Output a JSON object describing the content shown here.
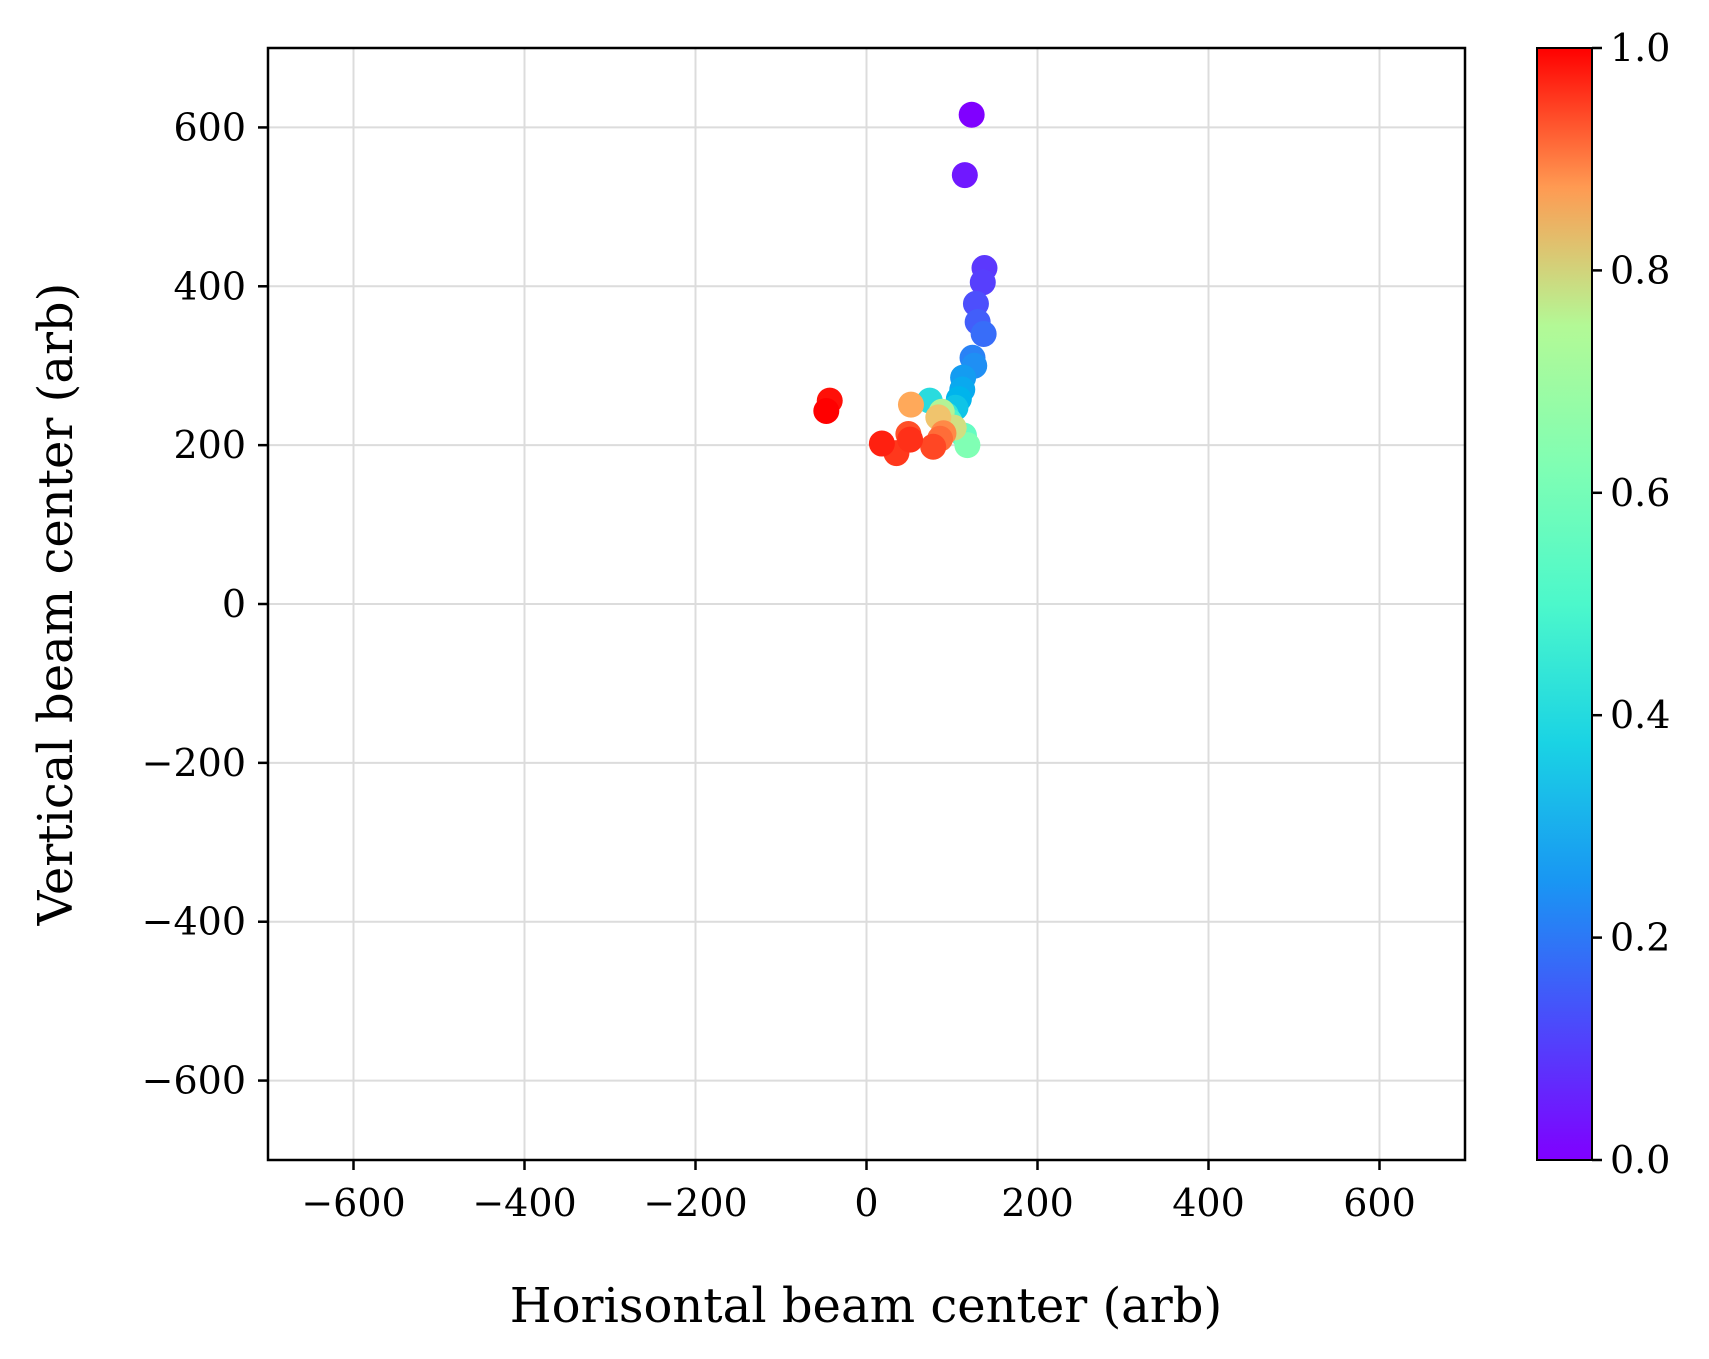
{
  "chart_data": {
    "type": "scatter",
    "title": "",
    "xlabel": "Horisontal beam center (arb)",
    "ylabel": "Vertical beam center (arb)",
    "xlim": [
      -700,
      700
    ],
    "ylim": [
      -700,
      700
    ],
    "xticks": [
      -600,
      -400,
      -200,
      0,
      200,
      400,
      600
    ],
    "yticks": [
      -600,
      -400,
      -200,
      0,
      200,
      400,
      600
    ],
    "xtick_labels": [
      "−600",
      "−400",
      "−200",
      "0",
      "200",
      "400",
      "600"
    ],
    "ytick_labels": [
      "−600",
      "−400",
      "−200",
      "0",
      "200",
      "400",
      "600"
    ],
    "grid": true,
    "colormap": "rainbow",
    "colorbar": {
      "range": [
        0.0,
        1.0
      ],
      "ticks": [
        0.0,
        0.2,
        0.4,
        0.6,
        0.8,
        1.0
      ],
      "tick_labels": [
        "0.0",
        "0.2",
        "0.4",
        "0.6",
        "0.8",
        "1.0"
      ]
    },
    "points": [
      {
        "x": 123,
        "y": 616,
        "c": 0.0
      },
      {
        "x": 115,
        "y": 540,
        "c": 0.03
      },
      {
        "x": 138,
        "y": 423,
        "c": 0.07
      },
      {
        "x": 136,
        "y": 405,
        "c": 0.08
      },
      {
        "x": 128,
        "y": 378,
        "c": 0.1
      },
      {
        "x": 130,
        "y": 355,
        "c": 0.12
      },
      {
        "x": 137,
        "y": 340,
        "c": 0.14
      },
      {
        "x": 124,
        "y": 310,
        "c": 0.17
      },
      {
        "x": 126,
        "y": 300,
        "c": 0.19
      },
      {
        "x": 113,
        "y": 285,
        "c": 0.21
      },
      {
        "x": 112,
        "y": 270,
        "c": 0.23
      },
      {
        "x": 108,
        "y": 258,
        "c": 0.25
      },
      {
        "x": 104,
        "y": 247,
        "c": 0.28
      },
      {
        "x": 74,
        "y": 256,
        "c": 0.33
      },
      {
        "x": 93,
        "y": 238,
        "c": 0.36
      },
      {
        "x": 97,
        "y": 230,
        "c": 0.4
      },
      {
        "x": 114,
        "y": 212,
        "c": 0.45
      },
      {
        "x": 118,
        "y": 200,
        "c": 0.5
      },
      {
        "x": 88,
        "y": 242,
        "c": 0.6
      },
      {
        "x": 102,
        "y": 222,
        "c": 0.66
      },
      {
        "x": 84,
        "y": 235,
        "c": 0.72
      },
      {
        "x": 52,
        "y": 251,
        "c": 0.77
      },
      {
        "x": 90,
        "y": 215,
        "c": 0.82
      },
      {
        "x": 86,
        "y": 208,
        "c": 0.86
      },
      {
        "x": 49,
        "y": 214,
        "c": 0.9
      },
      {
        "x": 78,
        "y": 198,
        "c": 0.91
      },
      {
        "x": 35,
        "y": 190,
        "c": 0.93
      },
      {
        "x": 51,
        "y": 207,
        "c": 0.94
      },
      {
        "x": 18,
        "y": 202,
        "c": 0.96
      },
      {
        "x": -43,
        "y": 256,
        "c": 0.98
      },
      {
        "x": -47,
        "y": 243,
        "c": 1.0
      }
    ]
  }
}
